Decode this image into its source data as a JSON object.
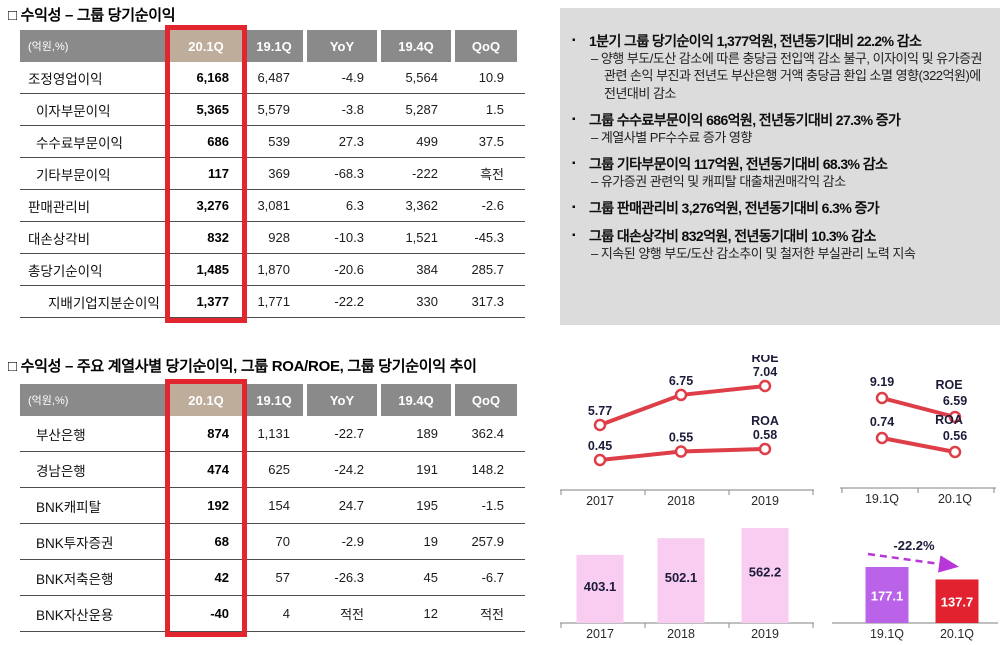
{
  "sections": {
    "profitability_group": {
      "title": "□ 수익성 – 그룹 당기순이익"
    },
    "profitability_subsidiaries": {
      "title": "□ 수익성 – 주요 계열사별 당기순이익, 그룹 ROA/ROE, 그룹 당기순이익 추이"
    }
  },
  "tables": [
    {
      "unit_label": "(억원,%)",
      "columns": [
        "20.1Q",
        "19.1Q",
        "YoY",
        "19.4Q",
        "QoQ"
      ],
      "highlight_column": "20.1Q",
      "rows": [
        {
          "label": "조정영업이익",
          "indent": 0,
          "values": [
            "6,168",
            "6,487",
            "-4.9",
            "5,564",
            "10.9"
          ]
        },
        {
          "label": "이자부문이익",
          "indent": 1,
          "values": [
            "5,365",
            "5,579",
            "-3.8",
            "5,287",
            "1.5"
          ]
        },
        {
          "label": "수수료부문이익",
          "indent": 1,
          "values": [
            "686",
            "539",
            "27.3",
            "499",
            "37.5"
          ]
        },
        {
          "label": "기타부문이익",
          "indent": 1,
          "values": [
            "117",
            "369",
            "-68.3",
            "-222",
            "흑전"
          ]
        },
        {
          "label": "판매관리비",
          "indent": 0,
          "values": [
            "3,276",
            "3,081",
            "6.3",
            "3,362",
            "-2.6"
          ]
        },
        {
          "label": "대손상각비",
          "indent": 0,
          "values": [
            "832",
            "928",
            "-10.3",
            "1,521",
            "-45.3"
          ]
        },
        {
          "label": "총당기순이익",
          "indent": 0,
          "values": [
            "1,485",
            "1,870",
            "-20.6",
            "384",
            "285.7"
          ]
        },
        {
          "label": "지배기업지분순이익",
          "indent": 2,
          "values": [
            "1,377",
            "1,771",
            "-22.2",
            "330",
            "317.3"
          ]
        }
      ]
    },
    {
      "unit_label": "(억원,%)",
      "columns": [
        "20.1Q",
        "19.1Q",
        "YoY",
        "19.4Q",
        "QoQ"
      ],
      "highlight_column": "20.1Q",
      "rows": [
        {
          "label": "부산은행",
          "indent": 1,
          "values": [
            "874",
            "1,131",
            "-22.7",
            "189",
            "362.4"
          ]
        },
        {
          "label": "경남은행",
          "indent": 1,
          "values": [
            "474",
            "625",
            "-24.2",
            "191",
            "148.2"
          ]
        },
        {
          "label": "BNK캐피탈",
          "indent": 1,
          "values": [
            "192",
            "154",
            "24.7",
            "195",
            "-1.5"
          ]
        },
        {
          "label": "BNK투자증권",
          "indent": 1,
          "values": [
            "68",
            "70",
            "-2.9",
            "19",
            "257.9"
          ]
        },
        {
          "label": "BNK저축은행",
          "indent": 1,
          "values": [
            "42",
            "57",
            "-26.3",
            "45",
            "-6.7"
          ]
        },
        {
          "label": "BNK자산운용",
          "indent": 1,
          "values": [
            "-40",
            "4",
            "적전",
            "12",
            "적전"
          ]
        }
      ]
    }
  ],
  "notes": {
    "items": [
      {
        "head": "1분기 그룹 당기순이익 1,377억원, 전년동기대비 22.2% 감소",
        "subs": [
          "– 양행 부도/도산 감소에 따른 충당금 전입액 감소 불구, 이자이익 및 유가증권 관련 손익 부진과 전년도 부산은행 거액 충당금 환입 소멸 영향(322억원)에 전년대비 감소"
        ]
      },
      {
        "head": "그룹 수수료부문이익 686억원, 전년동기대비 27.3% 증가",
        "subs": [
          "– 계열사별 PF수수료 증가 영향"
        ]
      },
      {
        "head": "그룹 기타부문이익 117억원, 전년동기대비  68.3% 감소",
        "subs": [
          "– 유가증권 관련익 및 캐피탈 대출채권매각익 감소"
        ]
      },
      {
        "head": "그룹 판매관리비 3,276억원, 전년동기대비 6.3% 증가",
        "subs": []
      },
      {
        "head": "그룹 대손상각비 832억원, 전년동기대비 10.3% 감소",
        "subs": [
          "– 지속된 양행 부도/도산 감소추이 및 철저한 부실관리 노력 지속"
        ]
      }
    ]
  },
  "chart_data": [
    {
      "id": "roe-roa-annual",
      "type": "line",
      "x": [
        "2017",
        "2018",
        "2019"
      ],
      "series": [
        {
          "name": "ROE",
          "values": [
            5.77,
            6.75,
            7.04
          ]
        },
        {
          "name": "ROA",
          "values": [
            0.45,
            0.55,
            0.58
          ]
        }
      ],
      "legend_position": "above-last-point",
      "grid": false
    },
    {
      "id": "roe-roa-quarterly",
      "type": "line",
      "x": [
        "19.1Q",
        "20.1Q"
      ],
      "series": [
        {
          "name": "ROE",
          "values": [
            9.19,
            6.59
          ]
        },
        {
          "name": "ROA",
          "values": [
            0.74,
            0.56
          ]
        }
      ],
      "legend_position": "above-last-point",
      "grid": false
    },
    {
      "id": "net-income-annual",
      "type": "bar",
      "categories": [
        "2017",
        "2018",
        "2019"
      ],
      "values": [
        403.1,
        502.1,
        562.2
      ],
      "bar_colors": [
        "#f9cdf1",
        "#f9cdf1",
        "#f9cdf1"
      ],
      "label_color": "#1c1c3a",
      "grid": false
    },
    {
      "id": "net-income-quarterly",
      "type": "bar",
      "categories": [
        "19.1Q",
        "20.1Q"
      ],
      "values": [
        177.1,
        137.7
      ],
      "bar_colors": [
        "#bb63e8",
        "#e2232f"
      ],
      "label_color": "#ffffff",
      "annotation": {
        "text": "-22.2%",
        "arrow_color": "#b836d8",
        "text_color": "#1c1c3a"
      },
      "grid": false
    }
  ],
  "colors": {
    "header_gray": "#8a8a8a",
    "highlight_beige": "#bfad9c",
    "accent_red": "#e2262f",
    "notes_bg": "#dcdcdc",
    "line_red": "#dd3e48",
    "axis_gray": "#9a9a9a",
    "chart_text": "#1c1c3a"
  }
}
